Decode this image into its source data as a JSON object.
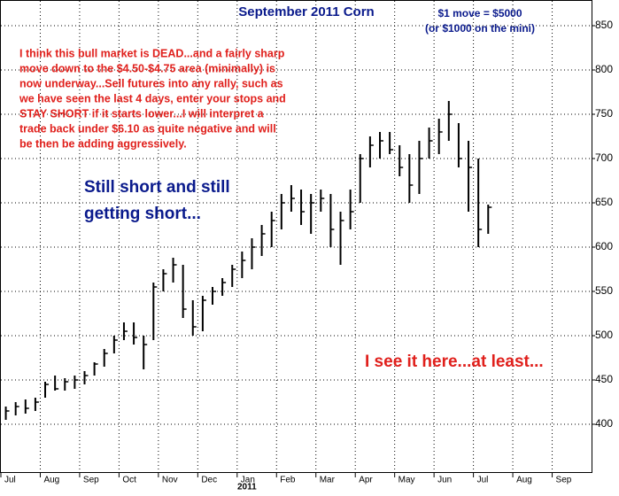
{
  "chart_data": {
    "type": "ohlc",
    "title": "September 2011 Corn",
    "annotations": [
      "$1 move = $5000",
      "(or $1000 on the mini)"
    ],
    "commentary": [
      "I think this bull market is DEAD...and a fairly sharp",
      "move down to the $4.50-$4.75 area (minimally) is",
      "now underway...Sell futures into any rally, such as",
      "we have seen the last 4 days, enter your stops and",
      "STAY SHORT if it starts lower...I will interpret a",
      "trade back under $6.10 as quite negative and will",
      "be then be adding aggressively."
    ],
    "callout": [
      "Still short and still",
      "getting short..."
    ],
    "note": "I see it here...at least...",
    "year_label": "2011",
    "categories": [
      "Jul",
      null,
      null,
      null,
      "Aug",
      null,
      null,
      null,
      "Sep",
      null,
      null,
      null,
      "Oct",
      null,
      null,
      null,
      "Nov",
      null,
      null,
      null,
      "Dec",
      null,
      null,
      null,
      "Jan",
      null,
      null,
      null,
      "Feb",
      null,
      null,
      null,
      "Mar",
      null,
      null,
      null,
      "Apr",
      null,
      null,
      null,
      "May",
      null,
      null,
      null,
      "Jun",
      null,
      null,
      null,
      "Jul",
      null,
      null,
      null,
      "Aug",
      null,
      null,
      null,
      "Sep",
      null,
      null,
      null
    ],
    "high": [
      420,
      425,
      428,
      430,
      448,
      455,
      452,
      455,
      460,
      470,
      485,
      500,
      515,
      515,
      500,
      560,
      575,
      588,
      580,
      540,
      545,
      555,
      565,
      580,
      595,
      610,
      625,
      640,
      660,
      670,
      665,
      660,
      665,
      660,
      640,
      665,
      705,
      725,
      730,
      730,
      715,
      705,
      720,
      735,
      745,
      765,
      740,
      720,
      700,
      648,
      null,
      null,
      null,
      null,
      null,
      null,
      null,
      null,
      null,
      null
    ],
    "low": [
      405,
      410,
      412,
      415,
      430,
      438,
      438,
      440,
      445,
      455,
      465,
      480,
      495,
      490,
      462,
      495,
      550,
      560,
      520,
      500,
      505,
      535,
      545,
      555,
      565,
      575,
      590,
      600,
      620,
      640,
      625,
      615,
      640,
      600,
      580,
      620,
      650,
      690,
      700,
      705,
      680,
      650,
      660,
      700,
      705,
      720,
      690,
      640,
      600,
      615,
      null,
      null,
      null,
      null,
      null,
      null,
      null,
      null,
      null,
      null
    ],
    "close": [
      415,
      420,
      418,
      425,
      445,
      440,
      448,
      450,
      455,
      468,
      480,
      495,
      505,
      498,
      490,
      555,
      570,
      580,
      530,
      510,
      540,
      550,
      560,
      575,
      585,
      600,
      615,
      630,
      650,
      655,
      640,
      650,
      655,
      620,
      630,
      640,
      700,
      715,
      720,
      710,
      690,
      670,
      700,
      720,
      730,
      750,
      700,
      690,
      620,
      645,
      null,
      null,
      null,
      null,
      null,
      null,
      null,
      null,
      null,
      null
    ],
    "color": "#000000",
    "ylim": [
      346,
      878
    ],
    "yticks": [
      400,
      450,
      500,
      550,
      600,
      650,
      700,
      750,
      800,
      850
    ],
    "grid": true
  }
}
